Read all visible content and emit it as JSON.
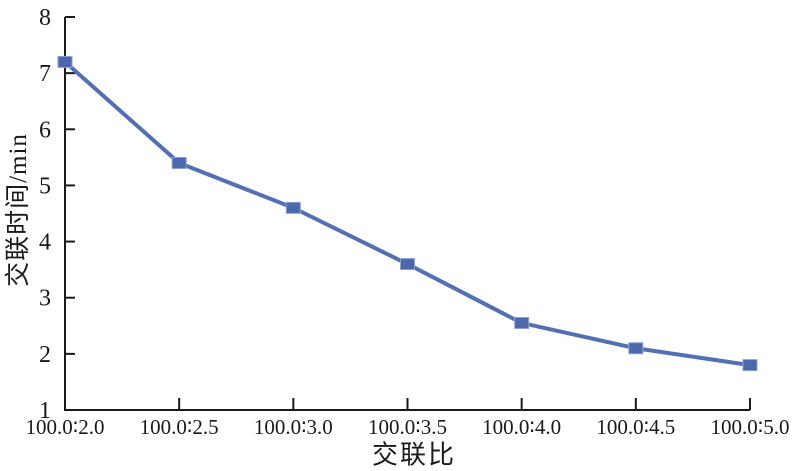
{
  "chart_data": {
    "type": "line",
    "title": "",
    "categories": [
      "100.0∶2.0",
      "100.0∶2.5",
      "100.0∶3.0",
      "100.0∶3.5",
      "100.0∶4.0",
      "100.0∶4.5",
      "100.0∶5.0"
    ],
    "values": [
      7.2,
      5.4,
      4.6,
      3.6,
      2.55,
      2.1,
      1.8
    ],
    "xlabel": "交联比",
    "ylabel": "交联时间/min",
    "ylim": [
      1,
      8
    ],
    "yticks": [
      1,
      2,
      3,
      4,
      5,
      6,
      7,
      8
    ],
    "grid": false,
    "legend": false,
    "marker": "square",
    "colors": {
      "series": "#5270b2",
      "marker_fill": "#4c68ac",
      "axis": "#1a1a1a",
      "background": "#ffffff"
    }
  }
}
